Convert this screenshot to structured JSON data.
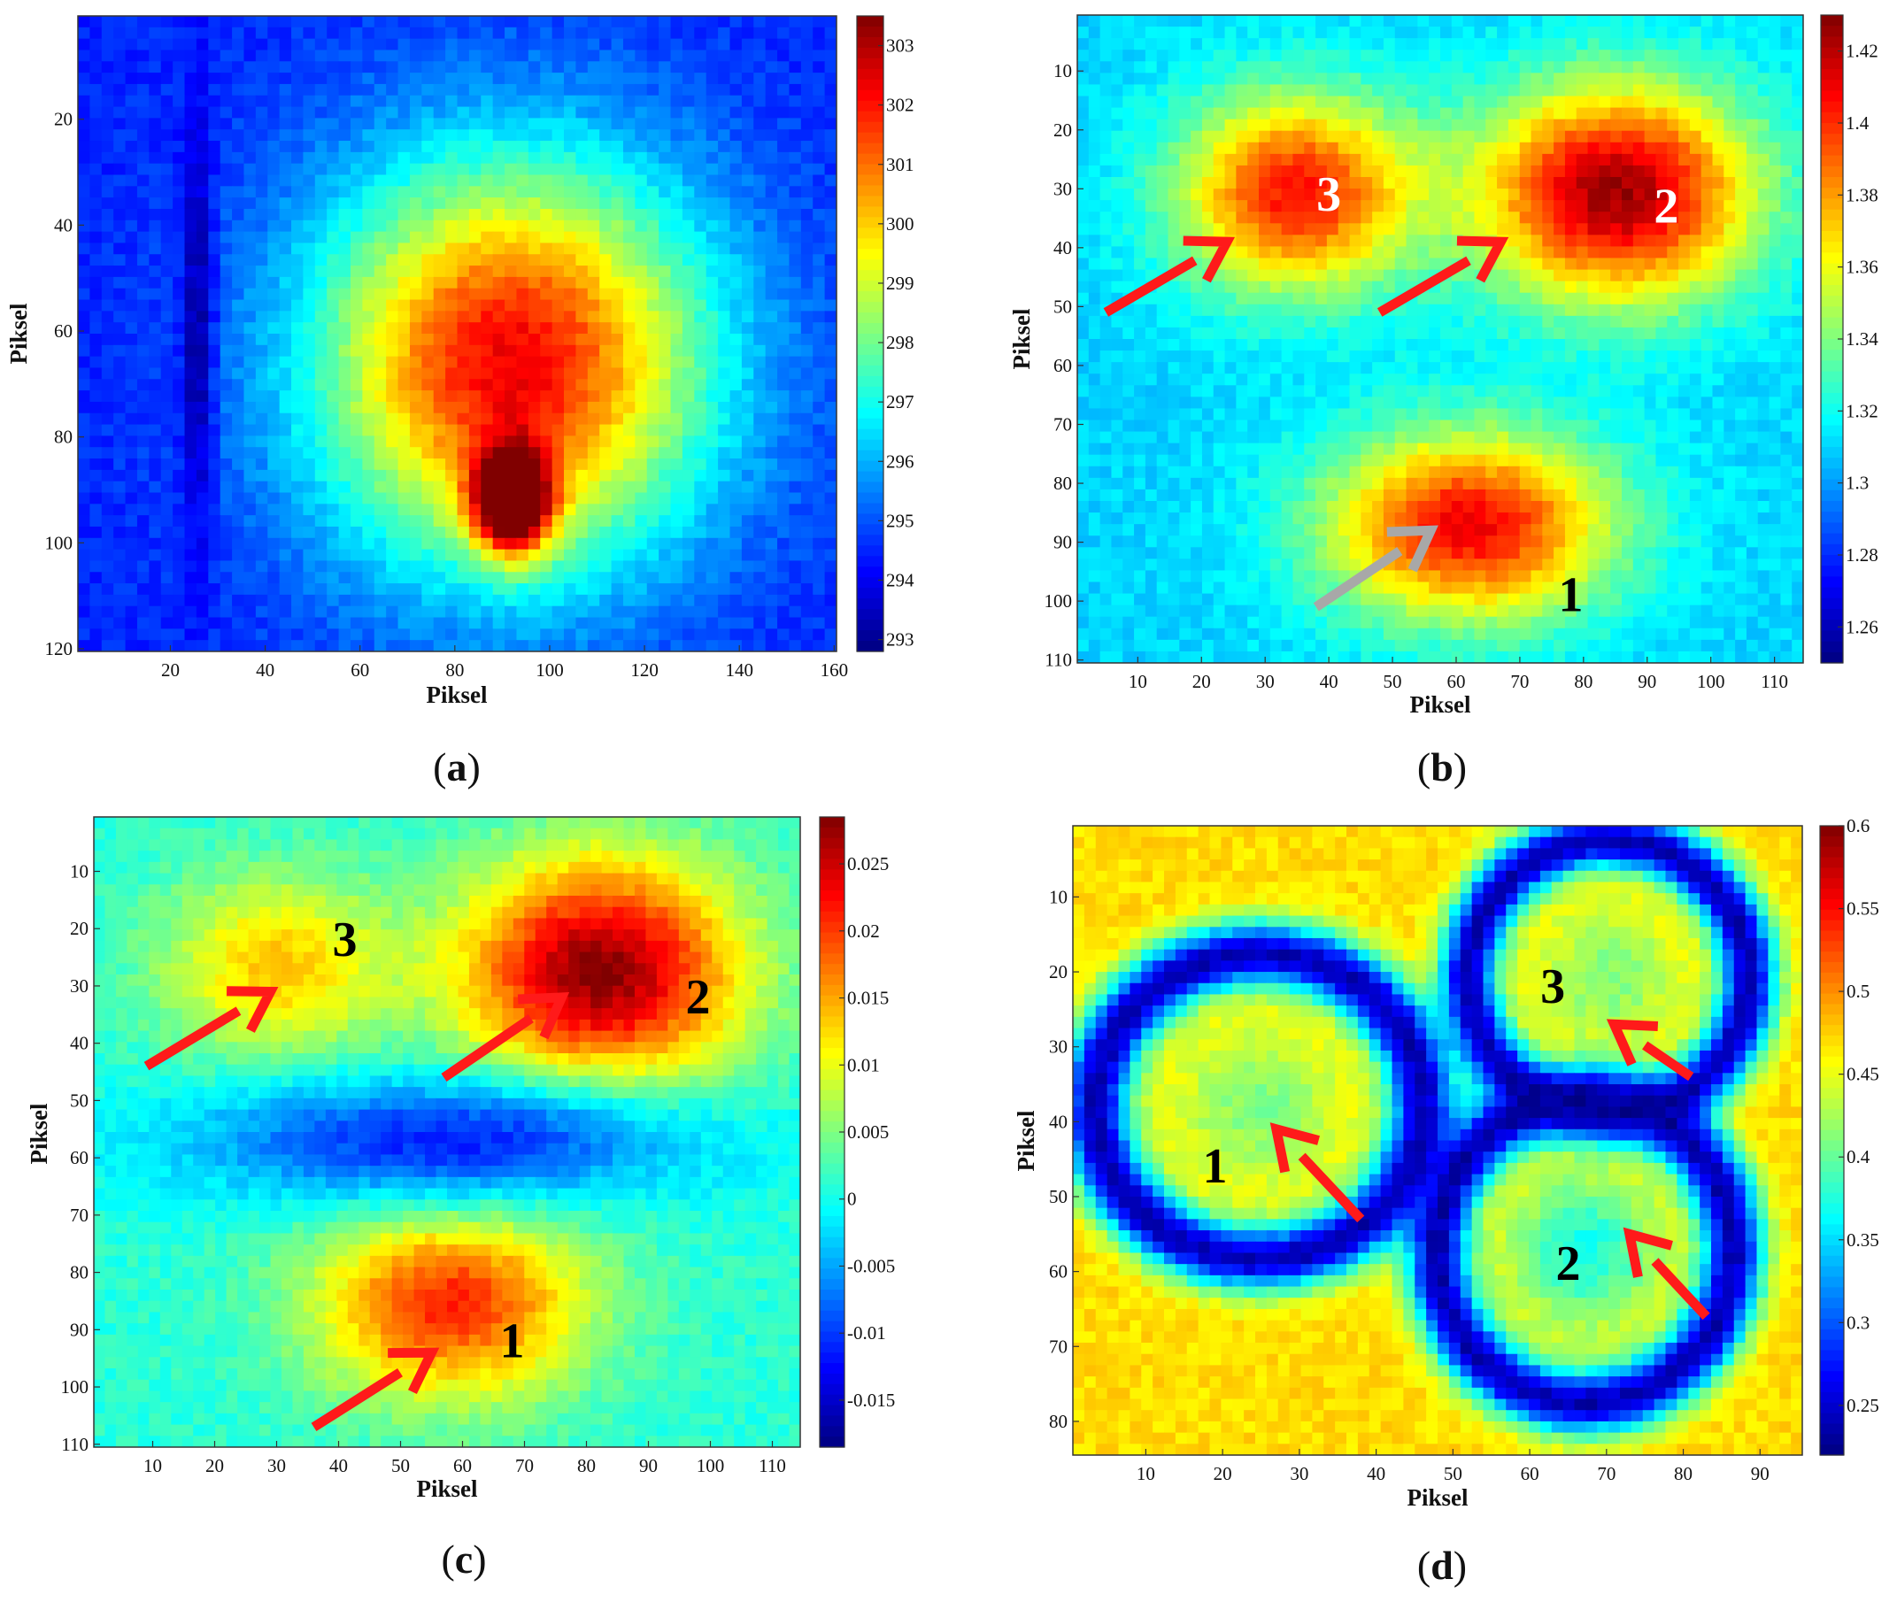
{
  "chart_data": [
    {
      "id": "a",
      "type": "heatmap",
      "caption": "a",
      "xlabel": "Piksel",
      "ylabel": "Piksel",
      "xlim": [
        1,
        160
      ],
      "ylim": [
        1,
        120
      ],
      "x_ticks": [
        "20",
        "40",
        "60",
        "80",
        "100",
        "120",
        "140",
        "160"
      ],
      "y_ticks": [
        "20",
        "40",
        "60",
        "80",
        "100",
        "120"
      ],
      "colorbar": {
        "min": 292.8,
        "max": 303.5,
        "ticks": [
          "293",
          "294",
          "295",
          "296",
          "297",
          "298",
          "299",
          "300",
          "301",
          "302",
          "303"
        ]
      },
      "background": 294.5,
      "features": [
        {
          "type": "ellipse",
          "x": 92,
          "y": 66,
          "rx": 52,
          "ry": 48,
          "peak": 302.3
        },
        {
          "type": "blob",
          "x": 92,
          "y": 92,
          "rx": 10,
          "ry": 12,
          "peak": 302.8
        },
        {
          "type": "dark-band",
          "x": 26,
          "y": 60,
          "rx": 5,
          "ry": 60,
          "peak": 293.1
        }
      ],
      "annotations": []
    },
    {
      "id": "b",
      "type": "heatmap",
      "caption": "b",
      "xlabel": "Piksel",
      "ylabel": "Piksel",
      "xlim": [
        1,
        114
      ],
      "ylim": [
        1,
        110
      ],
      "x_ticks": [
        "10",
        "20",
        "30",
        "40",
        "50",
        "60",
        "70",
        "80",
        "90",
        "100",
        "110"
      ],
      "y_ticks": [
        "10",
        "20",
        "30",
        "40",
        "50",
        "60",
        "70",
        "80",
        "90",
        "100",
        "110"
      ],
      "colorbar": {
        "min": 1.25,
        "max": 1.43,
        "ticks": [
          "1.26",
          "1.28",
          "1.3",
          "1.32",
          "1.34",
          "1.36",
          "1.38",
          "1.4",
          "1.42"
        ]
      },
      "background": 1.31,
      "features": [
        {
          "type": "blob",
          "x": 35,
          "y": 31,
          "rx": 23,
          "ry": 21,
          "peak": 1.405
        },
        {
          "type": "blob",
          "x": 85,
          "y": 31,
          "rx": 27,
          "ry": 23,
          "peak": 1.425
        },
        {
          "type": "blob",
          "x": 62,
          "y": 87,
          "rx": 28,
          "ry": 20,
          "peak": 1.41
        }
      ],
      "annotations": [
        {
          "label": "3",
          "x": 40,
          "y": 31,
          "color": "#ffffff"
        },
        {
          "label": "2",
          "x": 93,
          "y": 33,
          "color": "#ffffff"
        },
        {
          "label": "1",
          "x": 78,
          "y": 99,
          "color": "#000000"
        }
      ],
      "arrows": [
        {
          "from": [
            5,
            51
          ],
          "to": [
            24,
            39
          ],
          "color": "#ff1a1a"
        },
        {
          "from": [
            48,
            51
          ],
          "to": [
            67,
            39
          ],
          "color": "#ff1a1a"
        },
        {
          "from": [
            38,
            101
          ],
          "to": [
            56,
            88
          ],
          "color": "#a8a8a8"
        }
      ]
    },
    {
      "id": "c",
      "type": "heatmap",
      "caption": "c",
      "xlabel": "Piksel",
      "ylabel": "Piksel",
      "xlim": [
        1,
        114
      ],
      "ylim": [
        1,
        110
      ],
      "x_ticks": [
        "10",
        "20",
        "30",
        "40",
        "50",
        "60",
        "70",
        "80",
        "90",
        "100",
        "110"
      ],
      "y_ticks": [
        "10",
        "20",
        "30",
        "40",
        "50",
        "60",
        "70",
        "80",
        "90",
        "100",
        "110"
      ],
      "colorbar": {
        "min": -0.0185,
        "max": 0.0285,
        "ticks": [
          "-0.015",
          "-0.01",
          "-0.005",
          "0",
          "0.005",
          "0.01",
          "0.015",
          "0.02",
          "0.025"
        ]
      },
      "background": 0.001,
      "features": [
        {
          "type": "blob",
          "x": 30,
          "y": 27,
          "rx": 23,
          "ry": 20,
          "peak": 0.0135
        },
        {
          "type": "blob",
          "x": 82,
          "y": 28,
          "rx": 28,
          "ry": 25,
          "peak": 0.028
        },
        {
          "type": "blob",
          "x": 58,
          "y": 85,
          "rx": 27,
          "ry": 21,
          "peak": 0.021
        },
        {
          "type": "dark-band",
          "x": 57,
          "y": 57,
          "rx": 60,
          "ry": 16,
          "peak": -0.011
        }
      ],
      "annotations": [
        {
          "label": "3",
          "x": 41,
          "y": 22,
          "color": "#000000"
        },
        {
          "label": "2",
          "x": 98,
          "y": 32,
          "color": "#000000"
        },
        {
          "label": "1",
          "x": 68,
          "y": 92,
          "color": "#000000"
        }
      ],
      "arrows": [
        {
          "from": [
            9,
            44
          ],
          "to": [
            29,
            31
          ],
          "color": "#ff1a1a"
        },
        {
          "from": [
            57,
            46
          ],
          "to": [
            76,
            32
          ],
          "color": "#ff1a1a"
        },
        {
          "from": [
            36,
            107
          ],
          "to": [
            55,
            94
          ],
          "color": "#ff1a1a"
        }
      ]
    },
    {
      "id": "d",
      "type": "heatmap",
      "caption": "d",
      "xlabel": "Piksel",
      "ylabel": "Piksel",
      "xlim": [
        1,
        95
      ],
      "ylim": [
        1,
        84
      ],
      "x_ticks": [
        "10",
        "20",
        "30",
        "40",
        "50",
        "60",
        "70",
        "80",
        "90"
      ],
      "y_ticks": [
        "10",
        "20",
        "30",
        "40",
        "50",
        "60",
        "70",
        "80"
      ],
      "colorbar": {
        "min": 0.22,
        "max": 0.6,
        "ticks": [
          "0.25",
          "0.3",
          "0.35",
          "0.4",
          "0.45",
          "0.5",
          "0.55",
          "0.6"
        ]
      },
      "background": 0.47,
      "features": [
        {
          "type": "ring",
          "x": 25,
          "y": 38,
          "rx": 21,
          "ry": 20,
          "peak": 0.41
        },
        {
          "type": "ring",
          "x": 70,
          "y": 21,
          "rx": 18,
          "ry": 18,
          "peak": 0.41
        },
        {
          "type": "ring",
          "x": 67,
          "y": 57,
          "rx": 19,
          "ry": 20,
          "peak": 0.37
        }
      ],
      "annotations": [
        {
          "label": "1",
          "x": 19,
          "y": 46,
          "color": "#000000"
        },
        {
          "label": "3",
          "x": 63,
          "y": 22,
          "color": "#000000"
        },
        {
          "label": "2",
          "x": 65,
          "y": 59,
          "color": "#000000"
        }
      ],
      "arrows": [
        {
          "from": [
            38,
            53
          ],
          "to": [
            27,
            41
          ],
          "color": "#ff1a1a"
        },
        {
          "from": [
            81,
            34
          ],
          "to": [
            71,
            27
          ],
          "color": "#ff1a1a"
        },
        {
          "from": [
            83,
            66
          ],
          "to": [
            73,
            55
          ],
          "color": "#ff1a1a"
        }
      ]
    }
  ]
}
